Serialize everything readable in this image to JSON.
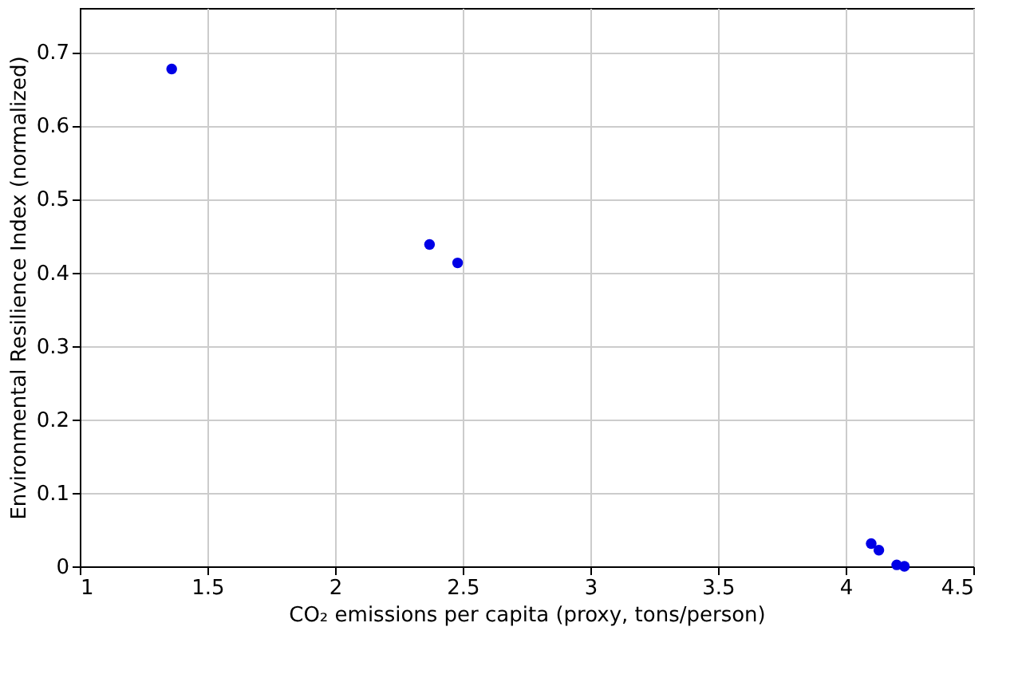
{
  "chart_data": {
    "type": "scatter",
    "xlabel": "CO₂ emissions per capita (proxy, tons/person)",
    "ylabel": "Environmental Resilience Index (normalized)",
    "x": [
      1.36,
      2.37,
      2.48,
      4.1,
      4.13,
      4.2,
      4.23
    ],
    "series": [
      {
        "color": "#0000e6",
        "values": [
          0.677,
          0.438,
          0.413,
          0.031,
          0.022,
          0.002,
          0.0
        ]
      }
    ],
    "xlim": [
      1,
      4.5
    ],
    "xticks": [
      1,
      1.5,
      2,
      2.5,
      3,
      3.5,
      4,
      4.5
    ],
    "ylim": [
      0,
      0.76
    ],
    "yticks": [
      0,
      0.1,
      0.2,
      0.3,
      0.4,
      0.5,
      0.6,
      0.7
    ],
    "grid": true,
    "marker": "circle"
  }
}
